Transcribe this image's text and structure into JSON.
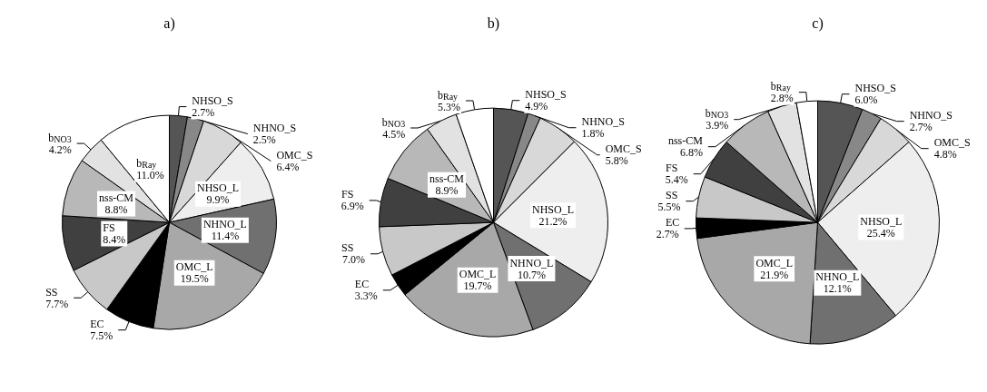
{
  "chart_data": [
    {
      "type": "pie",
      "title": "a)",
      "categories": [
        "NHSO_S",
        "NHNO_S",
        "OMC_S",
        "NHSO_L",
        "NHNO_L",
        "OMC_L",
        "EC",
        "SS",
        "FS",
        "nss-CM",
        "b$_{NO3}$",
        "b$_{Ray}$"
      ],
      "values": [
        2.7,
        2.5,
        6.4,
        9.9,
        11.4,
        19.5,
        7.5,
        7.7,
        8.4,
        8.8,
        4.2,
        11.0
      ],
      "value_labels": [
        "2.7%",
        "2.5%",
        "6.4%",
        "9.9%",
        "11.4%",
        "19.5%",
        "7.5%",
        "7.7%",
        "8.4%",
        "8.8%",
        "4.2%",
        "11.0%"
      ],
      "colors": [
        "#555555",
        "#888888",
        "#d8d8d8",
        "#eeeeee",
        "#707070",
        "#a8a8a8",
        "#000000",
        "#c8c8c8",
        "#404040",
        "#b8b8b8",
        "#e2e2e2",
        "#ffffff"
      ]
    },
    {
      "type": "pie",
      "title": "b)",
      "categories": [
        "NHSO_S",
        "NHNO_S",
        "OMC_S",
        "NHSO_L",
        "NHNO_L",
        "OMC_L",
        "EC",
        "SS",
        "FS",
        "nss-CM",
        "b$_{NO3}$",
        "b$_{Ray}$"
      ],
      "values": [
        4.9,
        1.8,
        5.8,
        21.2,
        10.7,
        19.7,
        3.3,
        7.0,
        6.9,
        8.9,
        4.5,
        5.3
      ],
      "value_labels": [
        "4.9%",
        "1.8%",
        "5.8%",
        "21.2%",
        "10.7%",
        "19.7%",
        "3.3%",
        "7.0%",
        "6.9%",
        "8.9%",
        "4.5%",
        "5.3%"
      ],
      "colors": [
        "#555555",
        "#888888",
        "#d8d8d8",
        "#eeeeee",
        "#707070",
        "#a8a8a8",
        "#000000",
        "#c8c8c8",
        "#404040",
        "#b8b8b8",
        "#e2e2e2",
        "#ffffff"
      ]
    },
    {
      "type": "pie",
      "title": "c)",
      "categories": [
        "NHSO_S",
        "NHNO_S",
        "OMC_S",
        "NHSO_L",
        "NHNO_L",
        "OMC_L",
        "EC",
        "SS",
        "FS",
        "nss-CM",
        "b$_{NO3}$",
        "b$_{Ray}$"
      ],
      "values": [
        6.0,
        2.7,
        4.8,
        25.4,
        12.1,
        21.9,
        2.7,
        5.5,
        5.4,
        6.8,
        3.9,
        2.8
      ],
      "value_labels": [
        "6.0%",
        "2.7%",
        "4.8%",
        "25.4%",
        "12.1%",
        "21.9%",
        "2.7%",
        "5.5%",
        "5.4%",
        "6.8%",
        "3.9%",
        "2.8%"
      ],
      "colors": [
        "#555555",
        "#888888",
        "#d8d8d8",
        "#eeeeee",
        "#707070",
        "#a8a8a8",
        "#000000",
        "#c8c8c8",
        "#404040",
        "#b8b8b8",
        "#e2e2e2",
        "#ffffff"
      ]
    }
  ]
}
